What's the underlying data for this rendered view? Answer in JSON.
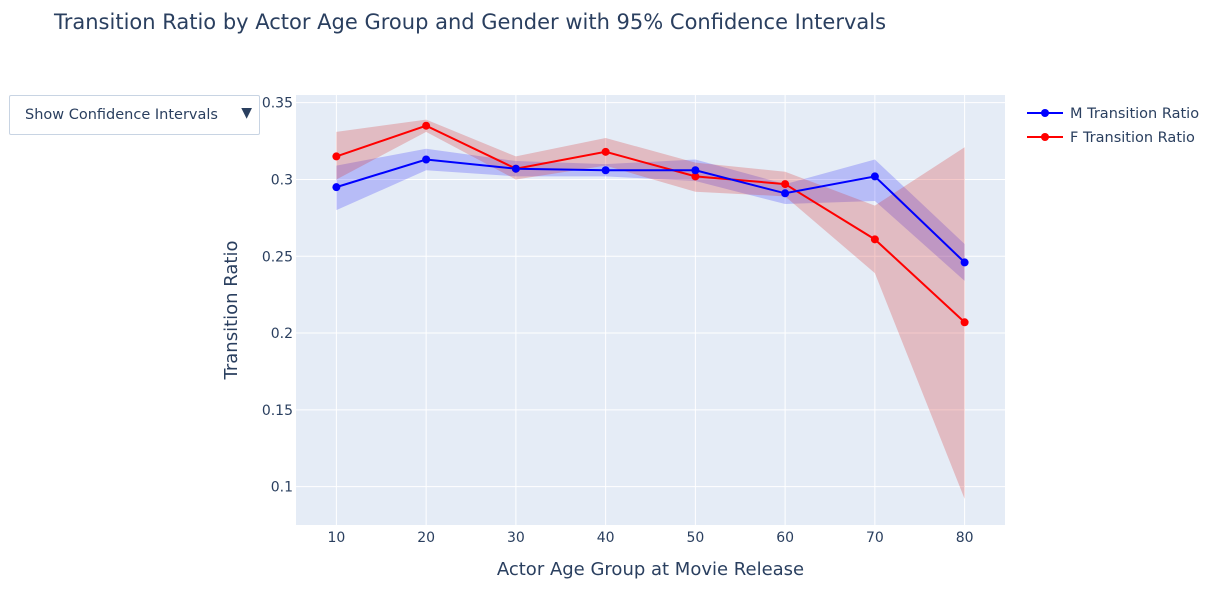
{
  "chart_data": {
    "type": "line",
    "title": "Transition Ratio by Actor Age Group and Gender with 95% Confidence Intervals",
    "xlabel": "Actor Age Group at Movie Release",
    "ylabel": "Transition Ratio",
    "x": [
      10,
      20,
      30,
      40,
      50,
      60,
      70,
      80
    ],
    "xlim": [
      5.5,
      84.5
    ],
    "ylim": [
      0.075,
      0.355
    ],
    "x_ticks": [
      10,
      20,
      30,
      40,
      50,
      60,
      70,
      80
    ],
    "y_ticks": [
      0.1,
      0.15,
      0.2,
      0.25,
      0.3,
      0.35
    ],
    "y_tick_labels": [
      "0.1",
      "0.15",
      "0.2",
      "0.25",
      "0.3",
      "0.35"
    ],
    "grid": true,
    "legend_placement": "top-right",
    "series": [
      {
        "name": "M Transition Ratio",
        "color": "#0000ff",
        "band_color": "rgba(0,0,255,0.2)",
        "values": [
          0.295,
          0.313,
          0.307,
          0.306,
          0.306,
          0.291,
          0.302,
          0.246
        ],
        "ci_lower": [
          0.28,
          0.306,
          0.302,
          0.302,
          0.299,
          0.284,
          0.286,
          0.234
        ],
        "ci_upper": [
          0.309,
          0.32,
          0.312,
          0.31,
          0.313,
          0.297,
          0.313,
          0.258
        ]
      },
      {
        "name": "F Transition Ratio",
        "color": "#ff0000",
        "band_color": "rgba(214,39,40,0.25)",
        "values": [
          0.315,
          0.335,
          0.307,
          0.318,
          0.302,
          0.297,
          0.261,
          0.207
        ],
        "ci_lower": [
          0.3,
          0.331,
          0.3,
          0.309,
          0.292,
          0.289,
          0.239,
          0.092
        ],
        "ci_upper": [
          0.331,
          0.339,
          0.315,
          0.327,
          0.311,
          0.305,
          0.283,
          0.321
        ]
      }
    ]
  },
  "controls": {
    "ci_dropdown_label": "Show Confidence Intervals",
    "ci_dropdown_arrow": "▼"
  }
}
